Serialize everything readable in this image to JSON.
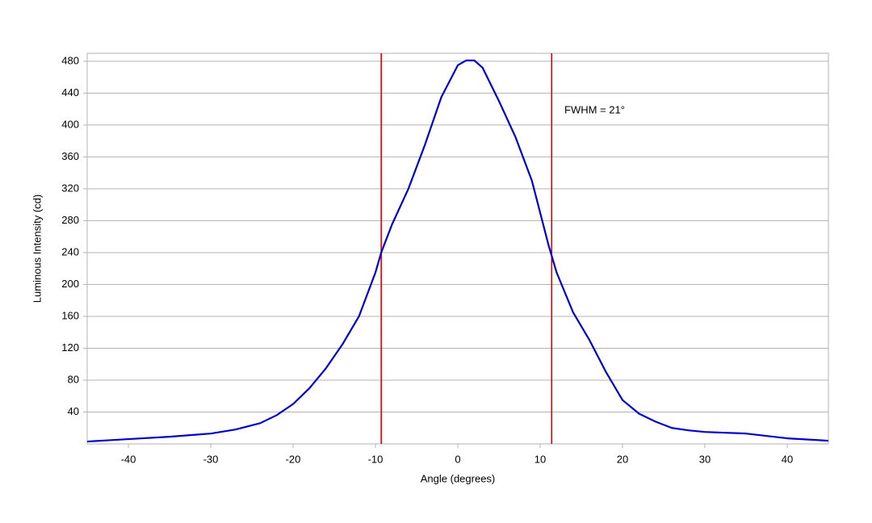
{
  "chart_data": {
    "type": "line",
    "x_label": "Angle (degrees)",
    "y_label": "Luminous Intensity (cd)",
    "annotation": "FWHM = 21°",
    "series": [
      {
        "name": "Luminous Intensity",
        "color": "#0000cc",
        "x": [
          -45,
          -40,
          -35,
          -30,
          -27,
          -24,
          -22,
          -20,
          -18,
          -16,
          -14,
          -12,
          -10,
          -9.3,
          -8,
          -6,
          -4,
          -2,
          0,
          1,
          2,
          3,
          5,
          7,
          9,
          11,
          12,
          14,
          16,
          18,
          20,
          22,
          24,
          26,
          28,
          30,
          35,
          40,
          45
        ],
        "values": [
          3,
          6,
          9,
          13,
          18,
          26,
          36,
          50,
          70,
          95,
          125,
          160,
          215,
          240,
          275,
          320,
          375,
          435,
          475,
          481,
          481,
          472,
          430,
          385,
          330,
          250,
          215,
          165,
          130,
          90,
          55,
          38,
          28,
          20,
          17,
          15,
          13,
          7,
          4
        ]
      }
    ],
    "vlines": [
      -9.3,
      11.4
    ],
    "vline_color": "#dd0000",
    "xlim": [
      -45,
      45
    ],
    "ylim": [
      0,
      490
    ],
    "xticks": [
      -40,
      -30,
      -20,
      -10,
      0,
      10,
      20,
      30,
      40
    ],
    "yticks": [
      40,
      80,
      120,
      160,
      200,
      240,
      280,
      320,
      360,
      400,
      440,
      480
    ],
    "grid": true
  }
}
